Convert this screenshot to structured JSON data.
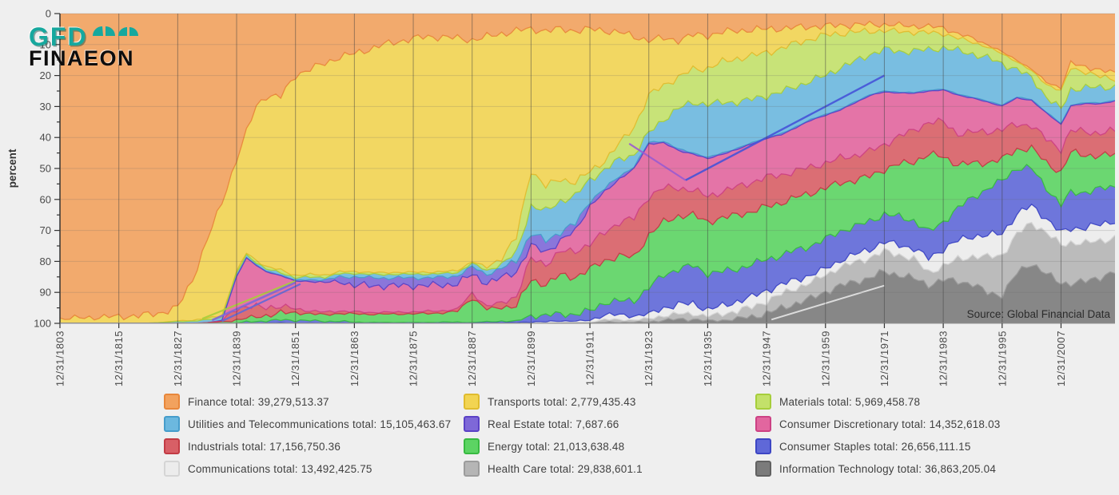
{
  "logo": {
    "line1": "GFD",
    "line2": "FINAEON"
  },
  "y_axis": {
    "label": "percent",
    "min": 0,
    "max": 100,
    "major_step": 10,
    "minor_step": 5,
    "inverted": true
  },
  "x_axis": {
    "tick_labels": [
      "12/31/1803",
      "12/31/1815",
      "12/31/1827",
      "12/31/1839",
      "12/31/1851",
      "12/31/1863",
      "12/31/1875",
      "12/31/1887",
      "12/31/1899",
      "12/31/1911",
      "12/31/1923",
      "12/31/1935",
      "12/31/1947",
      "12/31/1959",
      "12/31/1971",
      "12/31/1983",
      "12/31/1995",
      "12/31/2007"
    ],
    "tick_years": [
      1803,
      1815,
      1827,
      1839,
      1851,
      1863,
      1875,
      1887,
      1899,
      1911,
      1923,
      1935,
      1947,
      1959,
      1971,
      1983,
      1995,
      2007
    ]
  },
  "source_note": "Source: Global Financial Data",
  "colors": {
    "page_bg": "#EFEFEF",
    "grid_vertical": "#3F3F3F",
    "grid_horizontal": "#666666",
    "axis": "#333333",
    "tick_text": "#4A4A4A",
    "logo_teal": "#17A89E",
    "logo_black": "#0D0D0D",
    "source_text": "#2B2B2B"
  },
  "chart_data": {
    "type": "area",
    "stacked": true,
    "percent": true,
    "y_inverted": true,
    "x_range": [
      1803,
      2018
    ],
    "ylim": [
      0,
      100
    ],
    "legend_position": "bottom",
    "years": [
      1803,
      1807,
      1811,
      1815,
      1819,
      1823,
      1827,
      1830,
      1833,
      1836,
      1839,
      1841,
      1843,
      1845,
      1848,
      1851,
      1854,
      1857,
      1860,
      1863,
      1866,
      1869,
      1872,
      1875,
      1878,
      1881,
      1884,
      1887,
      1890,
      1893,
      1896,
      1899,
      1902,
      1905,
      1908,
      1911,
      1914,
      1917,
      1920,
      1923,
      1926,
      1929,
      1932,
      1935,
      1938,
      1941,
      1944,
      1947,
      1950,
      1953,
      1956,
      1959,
      1962,
      1965,
      1968,
      1971,
      1974,
      1977,
      1980,
      1983,
      1986,
      1989,
      1992,
      1995,
      1998,
      2001,
      2004,
      2007,
      2009,
      2012,
      2015,
      2018
    ],
    "series": [
      {
        "id": "finance",
        "name": "Finance",
        "legend_text": "Finance total: 39,279,513.37",
        "color": "#F2A25E",
        "stroke": "#E8873B",
        "values": [
          98.5,
          98.2,
          98,
          97.8,
          97.5,
          97,
          95,
          86,
          73,
          61,
          47,
          38.5,
          30,
          27,
          27,
          20,
          18,
          16,
          14,
          13,
          11.5,
          10,
          9,
          8,
          7.5,
          7.5,
          8,
          8.5,
          7.5,
          6.5,
          5.5,
          5,
          5.5,
          5,
          5.5,
          5,
          5.5,
          6,
          7.5,
          8.5,
          8,
          8.5,
          7,
          7,
          6,
          5.5,
          5.2,
          5,
          4.8,
          4.5,
          4.2,
          4,
          3.8,
          3.6,
          3.5,
          3.5,
          3.8,
          4,
          4.2,
          4.6,
          6.5,
          8,
          10,
          12.4,
          15,
          18,
          22,
          24,
          16,
          17,
          18.5,
          19
        ]
      },
      {
        "id": "transports",
        "name": "Transports",
        "legend_text": "Transports total: 2,779,435.43",
        "color": "#F2D452",
        "stroke": "#E0BC2E",
        "values": [
          1.5,
          1.8,
          2,
          2.2,
          2.5,
          3,
          4.4,
          13,
          25.4,
          36.5,
          36.2,
          39,
          50,
          56,
          56.2,
          65.1,
          66.4,
          68.4,
          69.3,
          70.8,
          72,
          73.7,
          74.5,
          75.5,
          76,
          75.8,
          75,
          71.5,
          74.5,
          72.3,
          66.8,
          45.5,
          50,
          48.5,
          49,
          46,
          42,
          36,
          29,
          18,
          15,
          12,
          11.2,
          10.6,
          9.6,
          9,
          8.5,
          7.5,
          6.5,
          5,
          4,
          3,
          2.6,
          2.4,
          2.2,
          2,
          2,
          2,
          2,
          1.8,
          1.5,
          1.2,
          0.8,
          0.6,
          0.5,
          0.5,
          0.8,
          1,
          1.5,
          1.8,
          2,
          2
        ]
      },
      {
        "id": "materials",
        "name": "Materials",
        "legend_text": "Materials total: 5,969,458.78",
        "color": "#C3E16A",
        "stroke": "#A6CE3B",
        "values": [
          0,
          0,
          0,
          0,
          0,
          0,
          0.2,
          0.3,
          0.5,
          0.5,
          0.6,
          0.6,
          0.7,
          0.8,
          0.8,
          0.8,
          0.8,
          0.7,
          0.7,
          0.6,
          0.6,
          0.6,
          0.6,
          0.6,
          0.6,
          0.6,
          0.6,
          0.6,
          1,
          2,
          5,
          11.5,
          8,
          7,
          4.5,
          2.5,
          3,
          5,
          9,
          12,
          11,
          10,
          10.7,
          11.6,
          13.1,
          14,
          14,
          14,
          14,
          14,
          13.5,
          13,
          11,
          9.5,
          7.5,
          6,
          6.5,
          6,
          5.5,
          4.6,
          4,
          3.8,
          3.5,
          3.2,
          2.5,
          2.2,
          4,
          6,
          7,
          5,
          3.5,
          2.5
        ]
      },
      {
        "id": "utilities",
        "name": "Utilities and Telecommunications",
        "legend_text": "Utilities and Telecommunications total: 15,105,463.67",
        "color": "#6CB8DF",
        "stroke": "#469DCB",
        "values": [
          0,
          0,
          0,
          0,
          0,
          0.2,
          0.6,
          0.7,
          0.9,
          1,
          1,
          0.8,
          0.8,
          0.7,
          0.8,
          0.8,
          0.9,
          0.9,
          1,
          1.1,
          1.1,
          1.1,
          1.2,
          1.2,
          1.2,
          1.2,
          1.1,
          1.1,
          1.2,
          1.5,
          2.5,
          9,
          9.5,
          10,
          9,
          7,
          6,
          5.5,
          4,
          3,
          7,
          13,
          16.4,
          17.2,
          16.2,
          15,
          14,
          13.5,
          13.5,
          13,
          12.5,
          12.5,
          13.5,
          13,
          13,
          13.5,
          13,
          13.5,
          13,
          13.4,
          14,
          14,
          14,
          13.3,
          9,
          7,
          5,
          4.5,
          5,
          5,
          4.8,
          4.5
        ]
      },
      {
        "id": "real-estate",
        "name": "Real Estate",
        "legend_text": "Real Estate total: 7,687.66",
        "color": "#7E68D8",
        "stroke": "#5B42C6",
        "values": [
          0,
          0,
          0,
          0,
          0,
          0,
          0,
          0,
          0,
          0.1,
          0.1,
          0.2,
          0.2,
          0.2,
          0.2,
          0.3,
          0.5,
          0.8,
          1.5,
          2.8,
          2.6,
          2.5,
          2.6,
          2.5,
          2.5,
          2.5,
          2.5,
          2.5,
          2.8,
          3,
          3.5,
          4,
          3.5,
          3,
          2.2,
          1.5,
          1.2,
          0.8,
          0.6,
          0.5,
          0.5,
          0.5,
          0.4,
          0.4,
          0.4,
          0.4,
          0.3,
          0.3,
          0.3,
          0.3,
          0.3,
          0.3,
          0.3,
          0.3,
          0.3,
          0.3,
          0.3,
          0.3,
          0.3,
          0.3,
          0.3,
          0.3,
          0.3,
          0.3,
          0.3,
          0.3,
          0.3,
          0.3,
          0.3,
          0.3,
          0.3,
          0.3
        ]
      },
      {
        "id": "consumer-discretionary",
        "name": "Consumer Discretionary",
        "legend_text": "Consumer Discretionary total: 14,352,618.03",
        "color": "#E2669F",
        "stroke": "#CC4184",
        "values": [
          0,
          0,
          0,
          0,
          0,
          0,
          0,
          0,
          0,
          0.2,
          10,
          16,
          13.5,
          11.5,
          10,
          9,
          9.5,
          9.6,
          9.5,
          8.5,
          8.7,
          8.5,
          8.5,
          8.5,
          8.3,
          8.3,
          8.2,
          6,
          7.5,
          8,
          8,
          4,
          4,
          3.5,
          6.5,
          12.5,
          13,
          14,
          16,
          17,
          14.5,
          12,
          11.8,
          12.1,
          12.1,
          12,
          12.5,
          12.5,
          13,
          14,
          15,
          15.5,
          15.5,
          17,
          18,
          17,
          14,
          12,
          10,
          10.3,
          12.5,
          11,
          9.5,
          7.6,
          8.5,
          8,
          8.5,
          8,
          8,
          9,
          9.5,
          9.5
        ]
      },
      {
        "id": "industrials",
        "name": "Industrials",
        "legend_text": "Industrials total: 17,156,750.36",
        "color": "#D85F66",
        "stroke": "#C23B44",
        "values": [
          0,
          0,
          0,
          0,
          0,
          0,
          0,
          0,
          0,
          0.2,
          4,
          3.5,
          3.2,
          2.8,
          2.2,
          1.2,
          1,
          0.8,
          0.8,
          0.7,
          0.6,
          0.6,
          0.6,
          0.6,
          0.7,
          0.7,
          0.7,
          1.5,
          1,
          1.5,
          3,
          7,
          6.5,
          7.5,
          8.5,
          8,
          9,
          11,
          12.5,
          12.5,
          11,
          9,
          8.2,
          8.1,
          8.6,
          9,
          9.5,
          9.5,
          9,
          8.5,
          8.5,
          8,
          8,
          8,
          8,
          8,
          9,
          10,
          10.5,
          11.2,
          10,
          10,
          10,
          9.6,
          8,
          7.5,
          7.5,
          7.5,
          7,
          7.5,
          7.5,
          7.5
        ]
      },
      {
        "id": "energy",
        "name": "Energy",
        "legend_text": "Energy total: 21,013,638.48",
        "color": "#5CD463",
        "stroke": "#38BA41",
        "values": [
          0,
          0,
          0,
          0,
          0,
          0,
          0,
          0,
          0.2,
          0.5,
          1,
          1.2,
          1.5,
          1.8,
          2.2,
          2.5,
          2.2,
          2.2,
          2.5,
          2.7,
          2.6,
          2.7,
          2.7,
          2.8,
          2.9,
          3,
          3.5,
          8,
          4,
          4.5,
          5,
          11.5,
          10,
          12.5,
          12,
          13.5,
          13.5,
          14.5,
          14,
          17,
          17,
          17,
          16.4,
          16.7,
          17.2,
          17.5,
          17,
          17,
          17,
          17,
          17,
          16.5,
          15.5,
          15,
          14.5,
          14.5,
          17,
          19,
          25,
          21,
          14,
          11,
          8.5,
          6.9,
          6,
          6.5,
          8,
          10.5,
          13,
          12,
          10.5,
          10.5
        ]
      },
      {
        "id": "consumer-staples",
        "name": "Consumer Staples",
        "legend_text": "Consumer Staples total: 26,656,111.15",
        "color": "#5F68D8",
        "stroke": "#3D46C4",
        "values": [
          0,
          0,
          0,
          0,
          0,
          0,
          0,
          0,
          0,
          0,
          0.1,
          0.5,
          0.6,
          0.7,
          0.9,
          0.9,
          0.8,
          0.5,
          0.6,
          0.3,
          0.2,
          0.2,
          0.2,
          0.2,
          0.2,
          0.3,
          0.3,
          0.2,
          0.3,
          0.5,
          0.5,
          2,
          2,
          2.3,
          2.2,
          3,
          4,
          4.5,
          5,
          8.5,
          10.5,
          11.5,
          12.3,
          11.6,
          11.1,
          10.5,
          10.5,
          10,
          9.5,
          9.5,
          9.5,
          9.5,
          9.5,
          9,
          9,
          9,
          9,
          9,
          8.5,
          8.8,
          10.5,
          12.5,
          15,
          17,
          15,
          12,
          10,
          9,
          11.5,
          11.5,
          11.5,
          11
        ]
      },
      {
        "id": "communications",
        "name": "Communications",
        "legend_text": "Communications total: 13,492,425.75",
        "color": "#ECECEC",
        "stroke": "#D5D5D5",
        "values": [
          0,
          0,
          0,
          0,
          0,
          0,
          0,
          0,
          0,
          0,
          0,
          0,
          0,
          0.1,
          0.2,
          0.1,
          0.1,
          0.1,
          0.1,
          0.1,
          0.1,
          0.1,
          0.1,
          0.1,
          0.1,
          0.1,
          0.1,
          0.1,
          0.2,
          0.2,
          0.2,
          0.5,
          0.4,
          0.5,
          0.4,
          0.6,
          1.6,
          1.5,
          1.3,
          1.5,
          2.5,
          3,
          3.3,
          2.2,
          2.6,
          3,
          3.3,
          3.5,
          3,
          2.7,
          2.3,
          2,
          2.2,
          2.5,
          2.8,
          3,
          3.2,
          3.4,
          4.5,
          5.5,
          6,
          6.5,
          7,
          7,
          6.5,
          5.5,
          4.5,
          4,
          4.5,
          5,
          5.2,
          5.5
        ]
      },
      {
        "id": "health-care",
        "name": "Health Care",
        "legend_text": "Health Care total: 29,838,601.1",
        "color": "#B5B5B5",
        "stroke": "#9C9C9C",
        "values": [
          0,
          0,
          0,
          0,
          0,
          0,
          0,
          0,
          0,
          0,
          0,
          0,
          0,
          0,
          0,
          0,
          0,
          0,
          0,
          0,
          0,
          0,
          0,
          0,
          0,
          0,
          0,
          0,
          0,
          0,
          0,
          0,
          0.1,
          0.2,
          0.2,
          0.3,
          0.8,
          0.8,
          0.7,
          1,
          1.5,
          1.7,
          1.8,
          1.5,
          2,
          2.6,
          3,
          4,
          4.5,
          5,
          5.2,
          5.5,
          6,
          6.2,
          6.5,
          6.5,
          6.5,
          6.3,
          4,
          4.5,
          7,
          9,
          11.5,
          12.9,
          12.5,
          13,
          13.4,
          12.2,
          13.2,
          12.4,
          11.7,
          11
        ]
      },
      {
        "id": "information-technology",
        "name": "Information Technology",
        "legend_text": "Information Technology total: 36,863,205.04",
        "color": "#7B7B7B",
        "stroke": "#616161",
        "values": [
          0,
          0,
          0,
          0,
          0,
          0,
          0,
          0,
          0,
          0,
          0,
          0,
          0,
          0,
          0,
          0,
          0,
          0,
          0,
          0,
          0,
          0,
          0,
          0,
          0,
          0,
          0,
          0,
          0,
          0,
          0,
          0,
          0,
          0.1,
          0.1,
          0.1,
          0.4,
          0.4,
          0.4,
          0.5,
          1,
          1.3,
          1.4,
          0.8,
          1,
          1.5,
          2.2,
          3.2,
          4.9,
          6.5,
          8,
          10.2,
          12.1,
          13.5,
          14.7,
          16.7,
          15.7,
          14.5,
          12.5,
          14,
          13.7,
          12.7,
          9.9,
          9.2,
          16.2,
          19.5,
          16,
          13,
          13,
          13.5,
          15,
          16.7
        ]
      }
    ],
    "artifact_lines": [
      {
        "name": "materials-sparse-line",
        "color": "#A6CE3B",
        "from": [
          1832,
          98.5
        ],
        "to": [
          1851,
          86.3
        ],
        "width": 2.2
      },
      {
        "name": "real-estate-sparse-line",
        "color": "#7E68D8",
        "from": [
          1834,
          99.0
        ],
        "to": [
          1851,
          86.8
        ],
        "width": 2.6
      },
      {
        "name": "staples-sparse-line",
        "color": "#5F68D8",
        "from": [
          1836,
          99.3
        ],
        "to": [
          1852,
          87.3
        ],
        "width": 2.2
      },
      {
        "name": "real-estate-sparse-line-2",
        "color": "#9A5BD0",
        "from": [
          1919,
          42
        ],
        "to": [
          1930.5,
          53.8
        ],
        "width": 2.2
      },
      {
        "name": "staples-sparse-line-2",
        "color": "#4553D8",
        "from": [
          1930.5,
          53.8
        ],
        "to": [
          1971,
          20
        ],
        "width": 2.4
      },
      {
        "name": "communications-sparse-line",
        "color": "#E6E6E6",
        "from": [
          1948,
          98.8
        ],
        "to": [
          1971,
          87.8
        ],
        "width": 2
      }
    ]
  }
}
